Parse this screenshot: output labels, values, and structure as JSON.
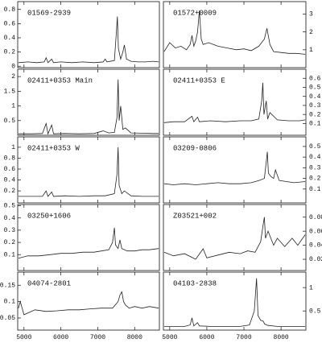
{
  "chart_data": [
    {
      "type": "line",
      "title": "01569-2939",
      "color": "#222222",
      "xlim": [
        4830,
        8670
      ],
      "xticks": [
        5000,
        6000,
        7000,
        8000
      ],
      "ylim": [
        -0.02,
        0.91
      ],
      "yticks": [
        0,
        0.2,
        0.4,
        0.6,
        0.8
      ],
      "x": [
        4850,
        5100,
        5350,
        5550,
        5600,
        5650,
        5750,
        5800,
        6000,
        6300,
        6600,
        6900,
        7150,
        7200,
        7250,
        7450,
        7500,
        7530,
        7560,
        7620,
        7680,
        7720,
        7780,
        7900,
        8100,
        8300,
        8500,
        8650
      ],
      "values": [
        0.05,
        0.06,
        0.05,
        0.06,
        0.12,
        0.05,
        0.1,
        0.05,
        0.06,
        0.05,
        0.06,
        0.05,
        0.06,
        0.1,
        0.06,
        0.08,
        0.45,
        0.7,
        0.25,
        0.1,
        0.2,
        0.3,
        0.1,
        0.07,
        0.06,
        0.06,
        0.07,
        0.06
      ]
    },
    {
      "type": "line",
      "title": "01572+0009",
      "color": "#222222",
      "xlim": [
        4830,
        8670
      ],
      "xticks": [
        5000,
        6000,
        7000,
        8000
      ],
      "ylim": [
        0,
        3.7
      ],
      "yticks": [
        1,
        2,
        3
      ],
      "x": [
        4850,
        5000,
        5150,
        5300,
        5450,
        5550,
        5600,
        5650,
        5700,
        5750,
        5800,
        5850,
        5900,
        6050,
        6300,
        6550,
        6800,
        7000,
        7200,
        7400,
        7550,
        7620,
        7700,
        7800,
        8000,
        8200,
        8400,
        8650
      ],
      "values": [
        0.9,
        1.4,
        1.1,
        1.2,
        1.0,
        1.3,
        1.8,
        1.2,
        1.5,
        2.0,
        3.2,
        1.6,
        1.3,
        1.4,
        1.2,
        1.1,
        1.0,
        1.05,
        0.95,
        1.2,
        1.6,
        2.2,
        1.3,
        0.9,
        0.85,
        0.8,
        0.8,
        0.75
      ]
    },
    {
      "type": "line",
      "title": "02411+0353 Main",
      "color": "#222222",
      "xlim": [
        4830,
        8670
      ],
      "xticks": [
        5000,
        6000,
        7000,
        8000
      ],
      "ylim": [
        0,
        2.25
      ],
      "yticks": [
        0.5,
        1,
        1.5,
        2
      ],
      "x": [
        4850,
        5200,
        5500,
        5600,
        5650,
        5750,
        5800,
        6100,
        6500,
        6900,
        7150,
        7300,
        7450,
        7520,
        7550,
        7580,
        7620,
        7680,
        7750,
        7900,
        8200,
        8500,
        8650
      ],
      "values": [
        0.05,
        0.05,
        0.06,
        0.4,
        0.05,
        0.35,
        0.05,
        0.06,
        0.05,
        0.06,
        0.15,
        0.08,
        0.1,
        0.6,
        1.9,
        0.5,
        1.0,
        0.2,
        0.25,
        0.08,
        0.07,
        0.06,
        0.06
      ]
    },
    {
      "type": "line",
      "title": "02411+0353 E",
      "color": "#222222",
      "xlim": [
        4830,
        8670
      ],
      "xticks": [
        5000,
        6000,
        7000,
        8000
      ],
      "ylim": [
        -0.03,
        0.7
      ],
      "yticks": [
        0.1,
        0.2,
        0.3,
        0.4,
        0.5,
        0.6
      ],
      "x": [
        4850,
        5100,
        5400,
        5600,
        5650,
        5750,
        5800,
        6100,
        6500,
        6900,
        7200,
        7400,
        7480,
        7510,
        7540,
        7600,
        7640,
        7700,
        7900,
        8200,
        8500,
        8650
      ],
      "values": [
        0.11,
        0.12,
        0.12,
        0.18,
        0.12,
        0.17,
        0.12,
        0.13,
        0.12,
        0.13,
        0.13,
        0.15,
        0.35,
        0.55,
        0.2,
        0.35,
        0.15,
        0.22,
        0.14,
        0.13,
        0.13,
        0.14
      ]
    },
    {
      "type": "line",
      "title": "02411+0353 W",
      "color": "#222222",
      "xlim": [
        4830,
        8670
      ],
      "xticks": [
        5000,
        6000,
        7000,
        8000
      ],
      "ylim": [
        -0.02,
        1.19
      ],
      "yticks": [
        0.2,
        0.4,
        0.6,
        0.8,
        1
      ],
      "x": [
        4850,
        5200,
        5500,
        5600,
        5650,
        5750,
        5800,
        6100,
        6500,
        6900,
        7200,
        7450,
        7520,
        7550,
        7580,
        7650,
        7720,
        7900,
        8200,
        8500,
        8650
      ],
      "values": [
        0.1,
        0.1,
        0.1,
        0.2,
        0.1,
        0.18,
        0.1,
        0.11,
        0.1,
        0.11,
        0.11,
        0.15,
        0.5,
        1.0,
        0.3,
        0.15,
        0.2,
        0.11,
        0.1,
        0.1,
        0.1
      ]
    },
    {
      "type": "line",
      "title": "03209-0806",
      "color": "#222222",
      "xlim": [
        4830,
        8670
      ],
      "xticks": [
        5000,
        6000,
        7000,
        8000
      ],
      "ylim": [
        -0.03,
        0.59
      ],
      "yticks": [
        0.1,
        0.2,
        0.3,
        0.4,
        0.5
      ],
      "x": [
        4850,
        5100,
        5400,
        5700,
        6000,
        6300,
        6600,
        6900,
        7200,
        7400,
        7550,
        7600,
        7630,
        7660,
        7720,
        7800,
        7850,
        7950,
        8150,
        8350,
        8650
      ],
      "values": [
        0.15,
        0.14,
        0.15,
        0.14,
        0.15,
        0.16,
        0.15,
        0.15,
        0.16,
        0.18,
        0.2,
        0.35,
        0.45,
        0.25,
        0.22,
        0.2,
        0.28,
        0.18,
        0.17,
        0.16,
        0.17
      ]
    },
    {
      "type": "line",
      "title": "03250+1606",
      "color": "#222222",
      "xlim": [
        4830,
        8670
      ],
      "xticks": [
        5000,
        6000,
        7000,
        8000
      ],
      "ylim": [
        -0.03,
        0.51
      ],
      "yticks": [
        0.1,
        0.2,
        0.3,
        0.4,
        0.5
      ],
      "x": [
        4850,
        5100,
        5400,
        5700,
        6000,
        6300,
        6600,
        6900,
        7100,
        7300,
        7400,
        7450,
        7480,
        7550,
        7600,
        7650,
        7800,
        8000,
        8200,
        8400,
        8650
      ],
      "values": [
        0.07,
        0.09,
        0.09,
        0.1,
        0.11,
        0.11,
        0.12,
        0.12,
        0.13,
        0.14,
        0.2,
        0.32,
        0.18,
        0.15,
        0.22,
        0.15,
        0.13,
        0.13,
        0.14,
        0.14,
        0.15
      ]
    },
    {
      "type": "line",
      "title": "Z03521+002",
      "color": "#222222",
      "xlim": [
        4830,
        8670
      ],
      "xticks": [
        5000,
        6000,
        7000,
        8000
      ],
      "ylim": [
        0.004,
        0.098
      ],
      "yticks": [
        0.02,
        0.04,
        0.06,
        0.08
      ],
      "x": [
        4850,
        5100,
        5400,
        5700,
        5900,
        6000,
        6300,
        6600,
        6900,
        7100,
        7300,
        7450,
        7520,
        7550,
        7580,
        7650,
        7800,
        7900,
        8100,
        8300,
        8450,
        8650
      ],
      "values": [
        0.03,
        0.025,
        0.028,
        0.02,
        0.035,
        0.022,
        0.026,
        0.03,
        0.028,
        0.032,
        0.03,
        0.045,
        0.07,
        0.08,
        0.05,
        0.06,
        0.04,
        0.05,
        0.038,
        0.05,
        0.04,
        0.055
      ]
    },
    {
      "type": "line",
      "title": "04074-2801",
      "color": "#222222",
      "xlim": [
        4830,
        8670
      ],
      "xticks": [
        5000,
        6000,
        7000,
        8000
      ],
      "ylim": [
        0.013,
        0.19
      ],
      "yticks": [
        0.05,
        0.1,
        0.15
      ],
      "x": [
        4850,
        4900,
        5000,
        5300,
        5600,
        5900,
        6200,
        6500,
        6800,
        7100,
        7400,
        7550,
        7600,
        7650,
        7700,
        7750,
        7850,
        8000,
        8200,
        8400,
        8650
      ],
      "values": [
        0.08,
        0.1,
        0.06,
        0.075,
        0.07,
        0.072,
        0.075,
        0.075,
        0.078,
        0.08,
        0.08,
        0.1,
        0.12,
        0.13,
        0.1,
        0.09,
        0.08,
        0.085,
        0.08,
        0.085,
        0.08
      ]
    },
    {
      "type": "line",
      "title": "04103-2838",
      "color": "#222222",
      "xlim": [
        4830,
        8670
      ],
      "xticks": [
        5000,
        6000,
        7000,
        8000
      ],
      "ylim": [
        0.09,
        1.33
      ],
      "yticks": [
        0.5,
        1
      ],
      "x": [
        4850,
        5100,
        5400,
        5550,
        5600,
        5650,
        5750,
        5800,
        6100,
        6500,
        6900,
        7150,
        7280,
        7340,
        7380,
        7450,
        7520,
        7560,
        7650,
        7900,
        8200,
        8500,
        8650
      ],
      "values": [
        0.17,
        0.17,
        0.17,
        0.2,
        0.35,
        0.18,
        0.25,
        0.18,
        0.17,
        0.17,
        0.17,
        0.2,
        0.5,
        1.2,
        0.4,
        0.3,
        0.28,
        0.22,
        0.19,
        0.17,
        0.17,
        0.17,
        0.17
      ]
    }
  ]
}
